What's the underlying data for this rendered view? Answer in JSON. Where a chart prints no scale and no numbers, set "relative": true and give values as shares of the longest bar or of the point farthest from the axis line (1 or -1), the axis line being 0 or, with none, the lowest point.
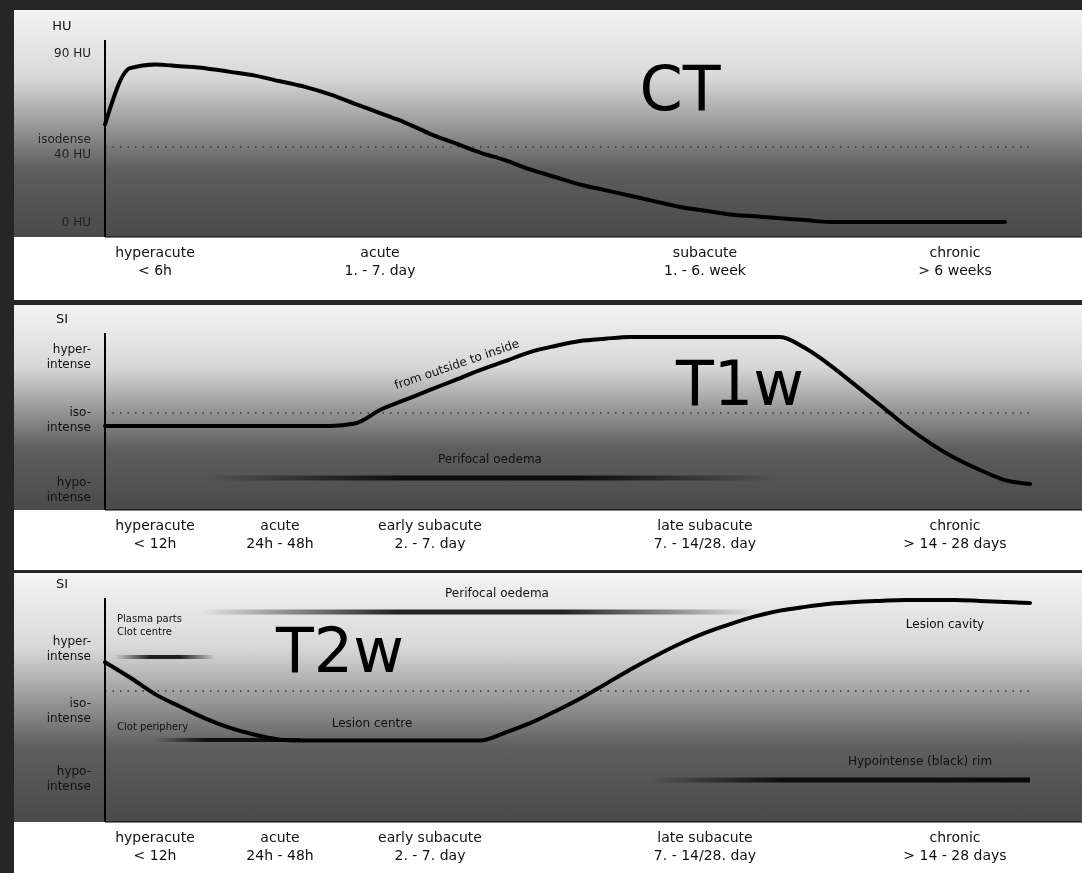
{
  "chart_data": [
    {
      "type": "line",
      "title": "CT",
      "ylabel": "HU",
      "ylim": [
        -8,
        97
      ],
      "yticks": [
        {
          "value": 90,
          "label": "90 HU"
        },
        {
          "value": 40,
          "label": "isodense\n40 HU"
        },
        {
          "value": 0,
          "label": "0 HU"
        }
      ],
      "categories": [
        null,
        null,
        "hyperacute\n< 6h",
        null,
        null,
        null,
        null,
        null,
        null,
        null,
        null,
        "acute\n1. - 7. day",
        null,
        null,
        null,
        null,
        null,
        null,
        null,
        null,
        null,
        null,
        null,
        null,
        "subacute\n1. - 6. week",
        null,
        null,
        null,
        null,
        null,
        null,
        null,
        null,
        null,
        "chronic\n> 6 weeks",
        null,
        null,
        null
      ],
      "series": [
        {
          "color": "#000000",
          "values": [
            52,
            82,
            84,
            83,
            82,
            80,
            78,
            75,
            72,
            68,
            63,
            58,
            53,
            47,
            42,
            37,
            33,
            28,
            24,
            20,
            17,
            14,
            11,
            8,
            6,
            4,
            3,
            2,
            1,
            0,
            0,
            0,
            0,
            0,
            0,
            0,
            0,
            null
          ]
        }
      ],
      "ref_lines": [
        {
          "axis": "y",
          "value": 40,
          "line_style": "dotted",
          "color": "#333333"
        }
      ]
    },
    {
      "type": "line",
      "title": "T1w",
      "ylabel": "SI",
      "relative": true,
      "categories": [
        null,
        null,
        "hyperacute\n< 12h",
        null,
        null,
        null,
        null,
        "acute\n24h - 48h",
        null,
        null,
        null,
        null,
        null,
        "early subacute\n2. - 7. day",
        null,
        null,
        null,
        null,
        null,
        null,
        null,
        null,
        null,
        null,
        "late subacute\n7. - 14/28. day",
        null,
        null,
        null,
        null,
        null,
        null,
        null,
        null,
        null,
        "chronic\n> 14 - 28  days",
        null,
        null,
        null
      ],
      "series": [
        {
          "color": "#000000",
          "values": [
            0.486,
            0.486,
            0.486,
            0.486,
            0.486,
            0.486,
            0.486,
            0.486,
            0.486,
            0.486,
            0.5,
            0.578,
            0.636,
            0.694,
            0.751,
            0.809,
            0.86,
            0.913,
            0.948,
            0.977,
            0.99,
            1,
            1,
            1,
            1,
            1,
            1,
            1,
            0.936,
            0.838,
            0.723,
            0.607,
            0.49,
            0.387,
            0.3,
            0.231,
            0.173,
            0.15
          ]
        }
      ],
      "ref_lines": [
        {
          "axis": "y",
          "value": 0.56,
          "line_style": "dotted",
          "color": "#333333"
        }
      ],
      "annotations": [
        "hyper-\nintense",
        "iso-\nintense",
        "hypo-\nintense",
        "from outside to inside",
        "Perifocal oedema"
      ]
    },
    {
      "type": "line",
      "title": "T2w",
      "ylabel": "SI",
      "relative": true,
      "categories": [
        null,
        null,
        "hyperacute\n< 12h",
        null,
        null,
        null,
        null,
        "acute\n24h - 48h",
        null,
        null,
        null,
        null,
        null,
        "early subacute\n2. - 7. day",
        null,
        null,
        null,
        null,
        null,
        null,
        null,
        null,
        null,
        null,
        "late subacute\n7. - 14/28. day",
        null,
        null,
        null,
        null,
        null,
        null,
        null,
        null,
        null,
        "chronic\n> 14 - 28  days",
        null,
        null,
        null
      ],
      "series": [
        {
          "color": "#000000",
          "values": [
            0.72,
            0.651,
            0.576,
            0.52,
            0.467,
            0.424,
            0.393,
            0.371,
            0.367,
            0.367,
            0.367,
            0.367,
            0.367,
            0.367,
            0.367,
            0.367,
            0.402,
            0.445,
            0.498,
            0.555,
            0.62,
            0.686,
            0.747,
            0.803,
            0.852,
            0.891,
            0.926,
            0.952,
            0.969,
            0.983,
            0.991,
            0.996,
            1,
            1,
            1,
            0.996,
            0.991,
            0.987
          ]
        }
      ],
      "ref_lines": [
        {
          "axis": "y",
          "value": 0.59,
          "line_style": "dotted",
          "color": "#333333"
        }
      ],
      "annotations": [
        "hyper-\nintense",
        "iso-\nintense",
        "hypo-\nintense",
        "Perifocal oedema",
        "Plasma parts\nClot centre",
        "Clot periphery",
        "Lesion centre",
        "Lesion cavity",
        "Hypointense (black) rim"
      ]
    }
  ]
}
